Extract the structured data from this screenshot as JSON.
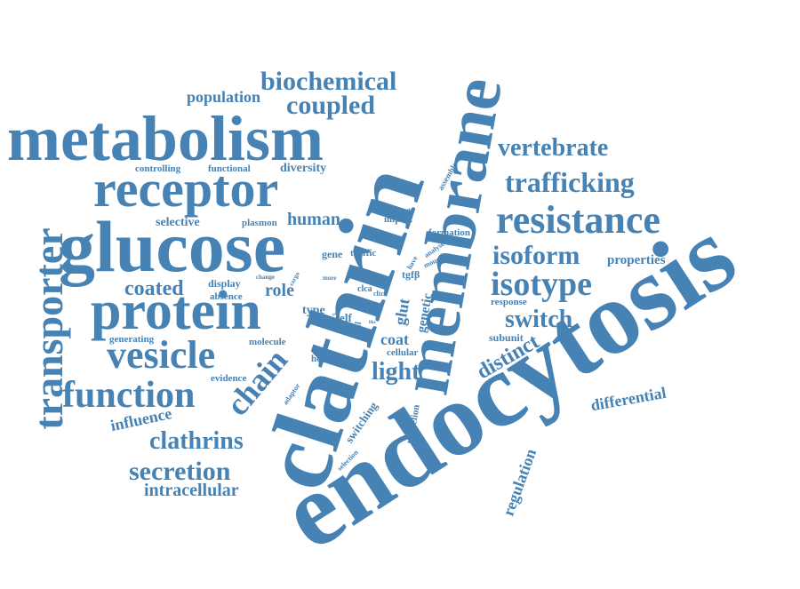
{
  "accent_color": "#4682b4",
  "words": [
    {
      "id": "endocytosis",
      "text": "endocytosis"
    },
    {
      "id": "clathrin",
      "text": "clathrin"
    },
    {
      "id": "membrane",
      "text": "membrane"
    },
    {
      "id": "metabolism",
      "text": "metabolism"
    },
    {
      "id": "glucose",
      "text": "glucose"
    },
    {
      "id": "receptor",
      "text": "receptor"
    },
    {
      "id": "protein",
      "text": "protein"
    },
    {
      "id": "transporter",
      "text": "transporter"
    },
    {
      "id": "resistance",
      "text": "resistance"
    },
    {
      "id": "vesicle",
      "text": "vesicle"
    },
    {
      "id": "function",
      "text": "function"
    },
    {
      "id": "isotype",
      "text": "isotype"
    },
    {
      "id": "isoform",
      "text": "isoform"
    },
    {
      "id": "trafficking",
      "text": "trafficking"
    },
    {
      "id": "vertebrate",
      "text": "vertebrate"
    },
    {
      "id": "biochemical",
      "text": "biochemical"
    },
    {
      "id": "coupled",
      "text": "coupled"
    },
    {
      "id": "secretion",
      "text": "secretion"
    },
    {
      "id": "clathrins",
      "text": "clathrins"
    },
    {
      "id": "chain",
      "text": "chain"
    },
    {
      "id": "switch",
      "text": "switch"
    },
    {
      "id": "coated",
      "text": "coated"
    },
    {
      "id": "light",
      "text": "light"
    },
    {
      "id": "distinct",
      "text": "distinct"
    },
    {
      "id": "human",
      "text": "human"
    },
    {
      "id": "influence",
      "text": "influence"
    },
    {
      "id": "intracellular",
      "text": "intracellular"
    },
    {
      "id": "population",
      "text": "population"
    },
    {
      "id": "differential",
      "text": "differential"
    },
    {
      "id": "regulation",
      "text": "regulation"
    },
    {
      "id": "properties",
      "text": "properties"
    },
    {
      "id": "role",
      "text": "role"
    },
    {
      "id": "diversity",
      "text": "diversity"
    },
    {
      "id": "coat",
      "text": "coat"
    },
    {
      "id": "glut",
      "text": "glut"
    },
    {
      "id": "genetic",
      "text": "genetic"
    },
    {
      "id": "selective",
      "text": "selective"
    },
    {
      "id": "subunit",
      "text": "subunit"
    },
    {
      "id": "controlling",
      "text": "controlling"
    },
    {
      "id": "functional",
      "text": "functional"
    },
    {
      "id": "generating",
      "text": "generating"
    },
    {
      "id": "display",
      "text": "display"
    },
    {
      "id": "absence",
      "text": "absence"
    },
    {
      "id": "type",
      "text": "type"
    },
    {
      "id": "self",
      "text": "self"
    },
    {
      "id": "gene",
      "text": "gene"
    },
    {
      "id": "traffic",
      "text": "traffic"
    },
    {
      "id": "plasmon",
      "text": "plasmon"
    },
    {
      "id": "molecule",
      "text": "molecule"
    },
    {
      "id": "evidence",
      "text": "evidence"
    },
    {
      "id": "heavy",
      "text": "heavy"
    },
    {
      "id": "cellular",
      "text": "cellular"
    },
    {
      "id": "triskelion",
      "text": "triskelion"
    },
    {
      "id": "switching",
      "text": "switching"
    },
    {
      "id": "response",
      "text": "response"
    },
    {
      "id": "formation",
      "text": "formation"
    },
    {
      "id": "tgfb",
      "text": "tgfβ"
    },
    {
      "id": "impact",
      "text": "impact"
    },
    {
      "id": "support",
      "text": "support"
    },
    {
      "id": "assemble",
      "text": "assemble"
    },
    {
      "id": "analyse",
      "text": "analyse"
    },
    {
      "id": "have",
      "text": "have"
    },
    {
      "id": "mouse",
      "text": "mouse"
    },
    {
      "id": "clca",
      "text": "clca"
    },
    {
      "id": "cltcl",
      "text": "cltcl"
    },
    {
      "id": "cell",
      "text": "cell"
    },
    {
      "id": "adaptor",
      "text": "adaptor"
    },
    {
      "id": "selection",
      "text": "selection"
    },
    {
      "id": "change",
      "text": "change"
    },
    {
      "id": "cargo",
      "text": "cargo"
    },
    {
      "id": "more",
      "text": "more"
    },
    {
      "id": "form",
      "text": "form"
    },
    {
      "id": "like",
      "text": "like"
    },
    {
      "id": "two",
      "text": "two"
    }
  ]
}
